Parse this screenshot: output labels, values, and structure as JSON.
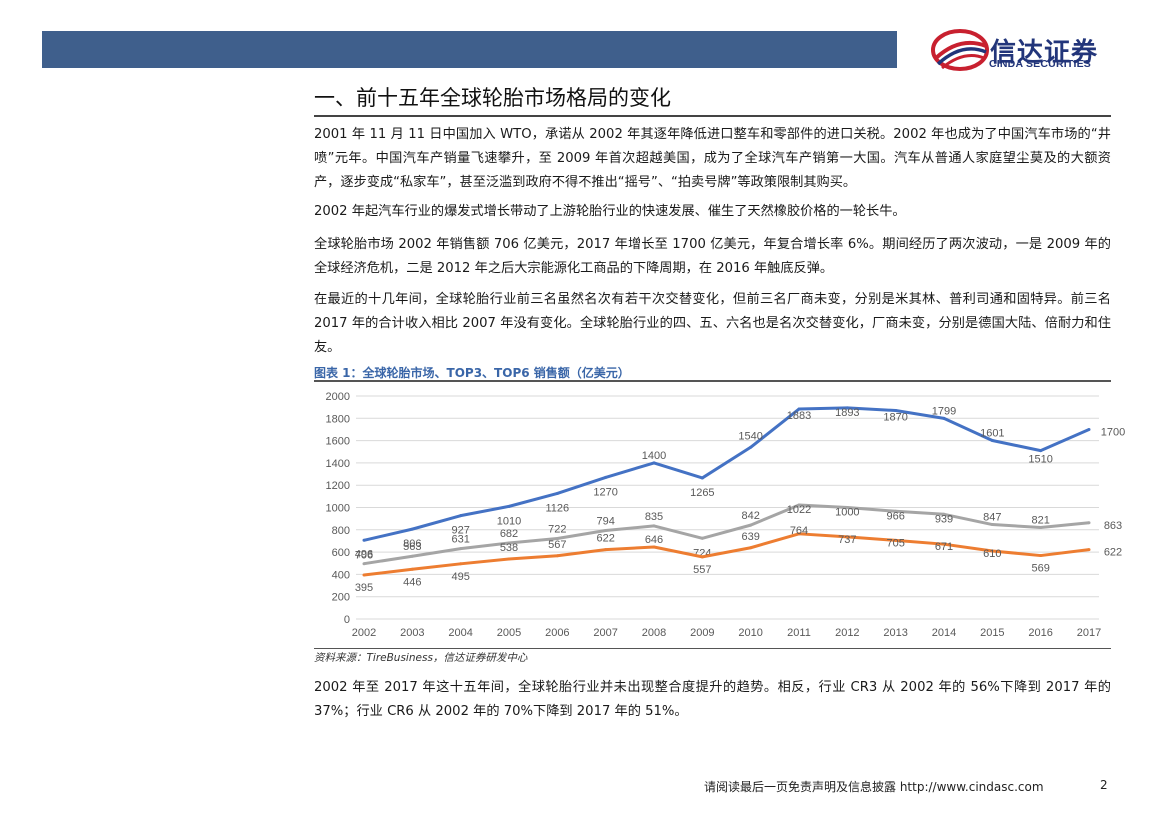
{
  "header": {
    "logo_cn": "信达证券",
    "logo_en": "CINDA SECURITIES",
    "brand_colors": {
      "bar": "#3f5f8c",
      "logo_red": "#c8202f",
      "logo_blue": "#22357a"
    }
  },
  "section": {
    "title": "一、前十五年全球轮胎市场格局的变化"
  },
  "paragraphs": [
    "2001 年 11 月 11 日中国加入 WTO，承诺从 2002 年其逐年降低进口整车和零部件的进口关税。2002 年也成为了中国汽车市场的“井喷”元年。中国汽车产销量飞速攀升，至 2009 年首次超越美国，成为了全球汽车产销第一大国。汽车从普通人家庭望尘莫及的大额资产，逐步变成“私家车”，甚至泛滥到政府不得不推出“摇号”、“拍卖号牌”等政策限制其购买。",
    "2002 年起汽车行业的爆发式增长带动了上游轮胎行业的快速发展、催生了天然橡胶价格的一轮长牛。",
    "全球轮胎市场 2002 年销售额 706 亿美元，2017 年增长至 1700 亿美元，年复合增长率 6%。期间经历了两次波动，一是 2009 年的全球经济危机，二是 2012 年之后大宗能源化工商品的下降周期，在 2016 年触底反弹。",
    "在最近的十几年间，全球轮胎行业前三名虽然名次有若干次交替变化，但前三名厂商未变，分别是米其林、普利司通和固特异。前三名 2017 年的合计收入相比 2007 年没有变化。全球轮胎行业的四、五、六名也是名次交替变化，厂商未变，分别是德国大陆、倍耐力和住友。",
    "2002 年至 2017 年这十五年间，全球轮胎行业并未出现整合度提升的趋势。相反，行业 CR3 从 2002 年的 56%下降到 2017 年的 37%；行业 CR6 从 2002 年的 70%下降到 2017 年的 51%。"
  ],
  "chart": {
    "caption": "图表 1：全球轮胎市场、TOP3、TOP6 销售额（亿美元）",
    "source": "资料来源：TireBusiness，信达证券研发中心"
  },
  "chart_data": {
    "type": "line",
    "title": "全球轮胎市场、TOP3、TOP6 销售额（亿美元）",
    "xlabel": "",
    "ylabel": "",
    "ylim": [
      0,
      2000
    ],
    "yticks": [
      0,
      200,
      400,
      600,
      800,
      1000,
      1200,
      1400,
      1600,
      1800,
      2000
    ],
    "grid": true,
    "categories": [
      "2002",
      "2003",
      "2004",
      "2005",
      "2006",
      "2007",
      "2008",
      "2009",
      "2010",
      "2011",
      "2012",
      "2013",
      "2014",
      "2015",
      "2016",
      "2017"
    ],
    "series": [
      {
        "name": "全球轮胎市场",
        "color": "#4472c4",
        "values": [
          706,
          806,
          927,
          1010,
          1126,
          1270,
          1400,
          1265,
          1540,
          1883,
          1893,
          1870,
          1799,
          1601,
          1510,
          1700
        ]
      },
      {
        "name": "TOP6",
        "color": "#a5a5a5",
        "values": [
          496,
          563,
          631,
          682,
          722,
          794,
          835,
          724,
          842,
          1022,
          1000,
          966,
          939,
          847,
          821,
          863
        ]
      },
      {
        "name": "TOP3",
        "color": "#ed7d31",
        "values": [
          395,
          446,
          495,
          538,
          567,
          622,
          646,
          557,
          639,
          764,
          737,
          705,
          671,
          610,
          569,
          622
        ]
      }
    ]
  },
  "footer": {
    "disclaimer": "请阅读最后一页免责声明及信息披露 http://www.cindasc.com",
    "page_number": "2"
  }
}
